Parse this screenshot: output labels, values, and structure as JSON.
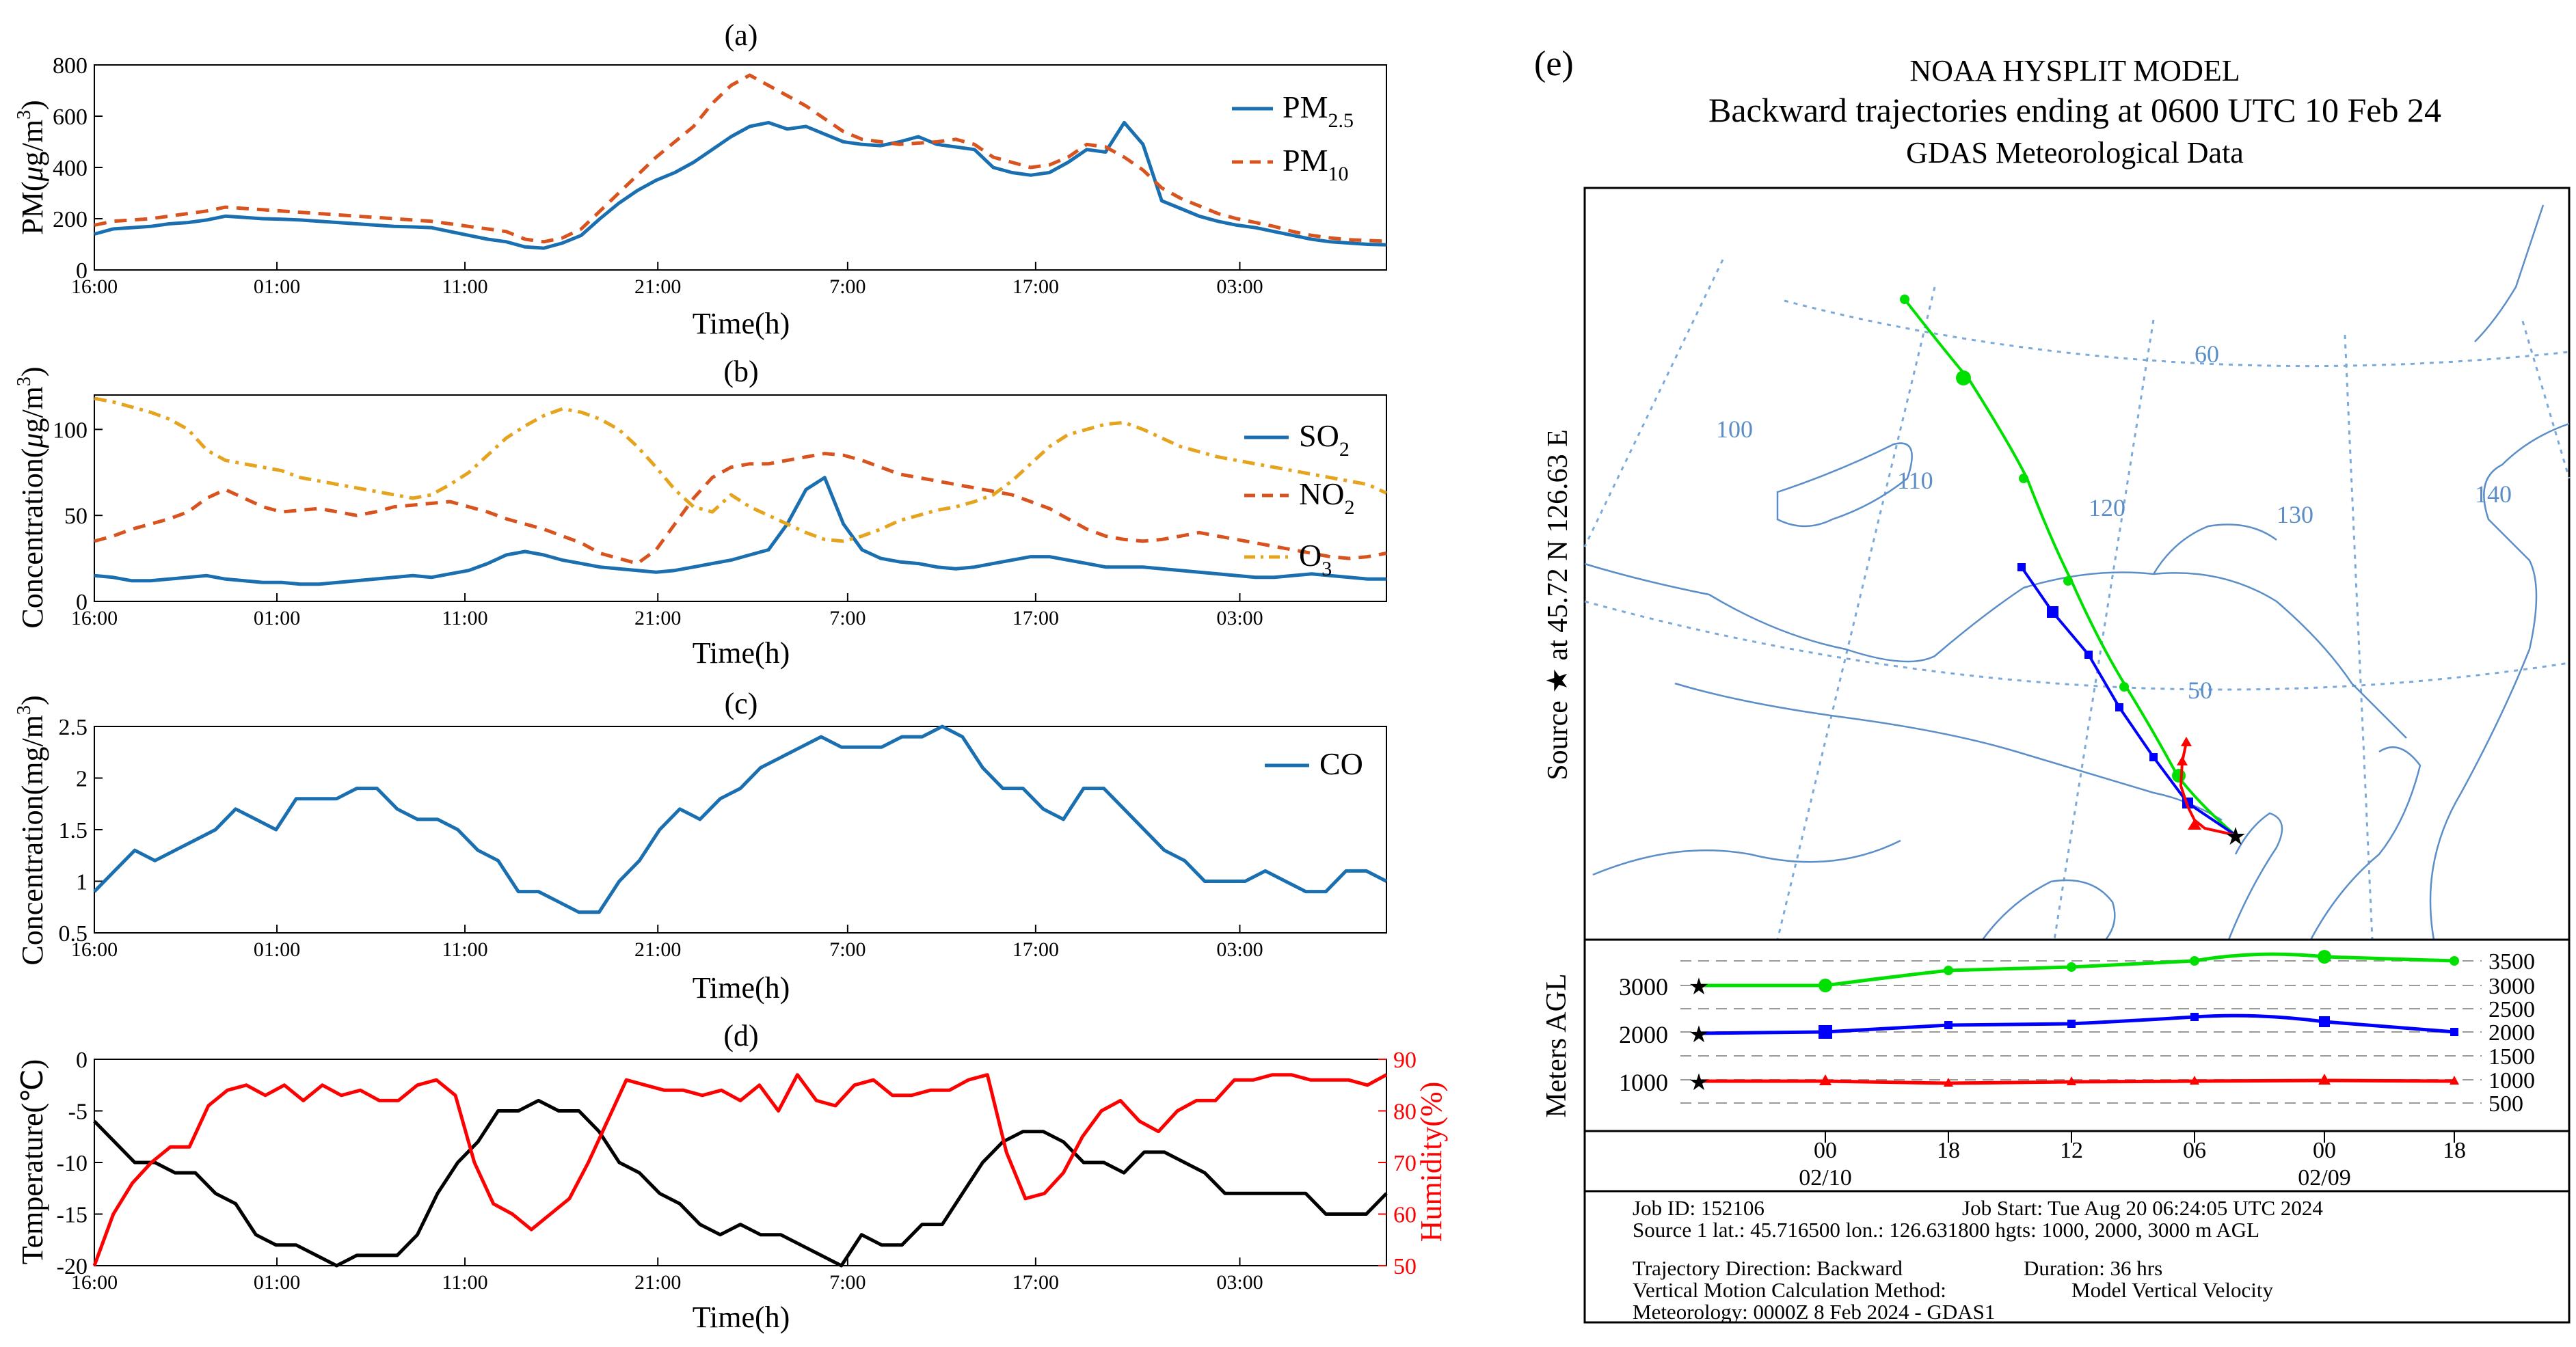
{
  "chart_data": [
    {
      "id": "a",
      "type": "line",
      "panel_label": "(a)",
      "xlabel": "Time(h)",
      "ylabel": "PM(μg/m³)",
      "ylabel_parts": [
        "PM(",
        "μ",
        "g/m",
        "3",
        ")"
      ],
      "ylim": [
        0,
        800
      ],
      "yticks": [
        "0",
        "200",
        "400",
        "600",
        "800"
      ],
      "xticks": [
        "16:00",
        "01:00",
        "11:00",
        "21:00",
        "7:00",
        "17:00",
        "03:00"
      ],
      "legend_position": "top-right",
      "series": [
        {
          "name": "PM2.5",
          "label_main": "PM",
          "label_sub": "2.5",
          "color": "#1a6fb0",
          "dash": "solid",
          "values": [
            140,
            160,
            165,
            170,
            180,
            185,
            195,
            210,
            205,
            200,
            198,
            195,
            190,
            185,
            180,
            175,
            170,
            168,
            165,
            150,
            135,
            120,
            110,
            90,
            85,
            105,
            135,
            200,
            260,
            310,
            350,
            380,
            420,
            470,
            520,
            560,
            575,
            550,
            560,
            530,
            500,
            490,
            485,
            500,
            520,
            490,
            480,
            470,
            400,
            380,
            370,
            380,
            420,
            470,
            460,
            575,
            490,
            270,
            240,
            210,
            190,
            175,
            165,
            150,
            135,
            120,
            110,
            105,
            100,
            98
          ]
        },
        {
          "name": "PM10",
          "label_main": "PM",
          "label_sub": "10",
          "color": "#d9531e",
          "dash": "dash",
          "values": [
            175,
            190,
            195,
            200,
            210,
            220,
            230,
            245,
            240,
            235,
            230,
            225,
            220,
            215,
            210,
            205,
            200,
            195,
            190,
            180,
            170,
            160,
            150,
            120,
            110,
            125,
            160,
            230,
            300,
            370,
            440,
            500,
            560,
            650,
            720,
            760,
            720,
            680,
            640,
            590,
            540,
            510,
            500,
            490,
            495,
            500,
            510,
            490,
            440,
            420,
            400,
            410,
            440,
            490,
            480,
            440,
            390,
            320,
            280,
            250,
            220,
            200,
            185,
            170,
            150,
            135,
            125,
            118,
            115,
            112
          ]
        }
      ]
    },
    {
      "id": "b",
      "type": "line",
      "panel_label": "(b)",
      "xlabel": "Time(h)",
      "ylabel": "Concentration(μg/m³)",
      "ylabel_parts": [
        "Concentration(",
        "μ",
        "g/m",
        "3",
        ")"
      ],
      "ylim": [
        0,
        120
      ],
      "yticks": [
        "0",
        "50",
        "100"
      ],
      "xticks": [
        "16:00",
        "01:00",
        "11:00",
        "21:00",
        "7:00",
        "17:00",
        "03:00"
      ],
      "legend_position": "top-right",
      "series": [
        {
          "name": "SO2",
          "label_main": "SO",
          "label_sub": "2",
          "color": "#1a6fb0",
          "dash": "solid",
          "values": [
            15,
            14,
            12,
            12,
            13,
            14,
            15,
            13,
            12,
            11,
            11,
            10,
            10,
            11,
            12,
            13,
            14,
            15,
            14,
            16,
            18,
            22,
            27,
            29,
            27,
            24,
            22,
            20,
            19,
            18,
            17,
            18,
            20,
            22,
            24,
            27,
            30,
            45,
            65,
            72,
            45,
            30,
            25,
            23,
            22,
            20,
            19,
            20,
            22,
            24,
            26,
            26,
            24,
            22,
            20,
            20,
            20,
            19,
            18,
            17,
            16,
            15,
            14,
            14,
            15,
            16,
            15,
            14,
            13,
            13
          ]
        },
        {
          "name": "NO2",
          "label_main": "NO",
          "label_sub": "2",
          "color": "#d9531e",
          "dash": "dash",
          "values": [
            35,
            38,
            42,
            45,
            48,
            52,
            60,
            65,
            60,
            55,
            52,
            53,
            54,
            52,
            50,
            52,
            55,
            56,
            57,
            58,
            55,
            52,
            48,
            45,
            42,
            38,
            34,
            28,
            25,
            22,
            30,
            45,
            60,
            72,
            78,
            80,
            80,
            82,
            84,
            86,
            85,
            82,
            78,
            74,
            72,
            70,
            68,
            66,
            64,
            62,
            58,
            54,
            48,
            42,
            38,
            36,
            35,
            36,
            38,
            40,
            38,
            36,
            34,
            32,
            30,
            28,
            26,
            25,
            26,
            28
          ]
        },
        {
          "name": "O3",
          "label_main": "O",
          "label_sub": "3",
          "color": "#e6a31e",
          "dash": "dashdot",
          "values": [
            118,
            116,
            113,
            110,
            106,
            100,
            88,
            82,
            80,
            78,
            76,
            72,
            70,
            68,
            66,
            64,
            62,
            60,
            62,
            68,
            75,
            85,
            95,
            102,
            108,
            112,
            110,
            106,
            100,
            90,
            78,
            65,
            55,
            52,
            62,
            55,
            50,
            45,
            40,
            36,
            35,
            38,
            42,
            47,
            50,
            53,
            55,
            58,
            62,
            70,
            80,
            90,
            97,
            100,
            103,
            104,
            100,
            95,
            90,
            87,
            84,
            82,
            80,
            78,
            76,
            74,
            72,
            70,
            68,
            63
          ]
        }
      ]
    },
    {
      "id": "c",
      "type": "line",
      "panel_label": "(c)",
      "xlabel": "Time(h)",
      "ylabel": "Concentration(mg/m³)",
      "ylabel_parts": [
        "Concentration(mg/m",
        "3",
        ")"
      ],
      "ylim": [
        0.5,
        2.5
      ],
      "yticks": [
        "0.5",
        "1",
        "1.5",
        "2",
        "2.5"
      ],
      "xticks": [
        "16:00",
        "01:00",
        "11:00",
        "21:00",
        "7:00",
        "17:00",
        "03:00"
      ],
      "legend_position": "top-right",
      "series": [
        {
          "name": "CO",
          "label_main": "CO",
          "label_sub": "",
          "color": "#1a6fb0",
          "dash": "solid",
          "values": [
            0.9,
            1.1,
            1.3,
            1.2,
            1.3,
            1.4,
            1.5,
            1.7,
            1.6,
            1.5,
            1.8,
            1.8,
            1.8,
            1.9,
            1.9,
            1.7,
            1.6,
            1.6,
            1.5,
            1.3,
            1.2,
            0.9,
            0.9,
            0.8,
            0.7,
            0.7,
            1.0,
            1.2,
            1.5,
            1.7,
            1.6,
            1.8,
            1.9,
            2.1,
            2.2,
            2.3,
            2.4,
            2.3,
            2.3,
            2.3,
            2.4,
            2.4,
            2.5,
            2.4,
            2.1,
            1.9,
            1.9,
            1.7,
            1.6,
            1.9,
            1.9,
            1.7,
            1.5,
            1.3,
            1.2,
            1.0,
            1.0,
            1.0,
            1.1,
            1.0,
            0.9,
            0.9,
            1.1,
            1.1,
            1.0
          ]
        }
      ]
    },
    {
      "id": "d",
      "type": "line",
      "panel_label": "(d)",
      "xlabel": "Time(h)",
      "ylabel": "Temperature(℃)",
      "ylabel_right": "Humidity(%)",
      "ylim": [
        -20,
        0
      ],
      "ylim_right": [
        50,
        90
      ],
      "yticks": [
        "-20",
        "-15",
        "-10",
        "-5",
        "0"
      ],
      "yticks_right": [
        "50",
        "60",
        "70",
        "80",
        "90"
      ],
      "xticks": [
        "16:00",
        "01:00",
        "11:00",
        "21:00",
        "7:00",
        "17:00",
        "03:00"
      ],
      "series": [
        {
          "name": "Temperature",
          "color": "#000000",
          "axis": "left",
          "values": [
            -6,
            -8,
            -10,
            -10,
            -11,
            -11,
            -13,
            -14,
            -17,
            -18,
            -18,
            -19,
            -20,
            -19,
            -19,
            -19,
            -17,
            -13,
            -10,
            -8,
            -5,
            -5,
            -4,
            -5,
            -5,
            -7,
            -10,
            -11,
            -13,
            -14,
            -16,
            -17,
            -16,
            -17,
            -17,
            -18,
            -19,
            -20,
            -17,
            -18,
            -18,
            -16,
            -16,
            -13,
            -10,
            -8,
            -7,
            -7,
            -8,
            -10,
            -10,
            -11,
            -9,
            -9,
            -10,
            -11,
            -13,
            -13,
            -13,
            -13,
            -13,
            -15,
            -15,
            -15,
            -13
          ]
        },
        {
          "name": "Humidity",
          "color": "#ff0000",
          "axis": "right",
          "values": [
            50,
            60,
            66,
            70,
            73,
            73,
            81,
            84,
            85,
            83,
            85,
            82,
            85,
            83,
            84,
            82,
            82,
            85,
            86,
            83,
            70,
            62,
            60,
            57,
            60,
            63,
            70,
            78,
            86,
            85,
            84,
            84,
            83,
            84,
            82,
            85,
            80,
            87,
            82,
            81,
            85,
            86,
            83,
            83,
            84,
            84,
            86,
            87,
            72,
            63,
            64,
            68,
            75,
            80,
            82,
            78,
            76,
            80,
            82,
            82,
            86,
            86,
            87,
            87,
            86,
            86,
            86,
            85,
            87
          ]
        }
      ]
    }
  ],
  "panel_e": {
    "label": "(e)",
    "title_lines": [
      "NOAA HYSPLIT MODEL",
      "Backward trajectories ending at 0600 UTC 10 Feb 24",
      "GDAS Meteorological Data"
    ],
    "source_label": "Source ★ at 45.72 N 126.63 E",
    "map_grid_labels": [
      "60",
      "100",
      "110",
      "120",
      "130",
      "140",
      "50"
    ],
    "trajectory_colors": {
      "green": "#00e000",
      "blue": "#0000ff",
      "red": "#ff0000"
    },
    "height_panel": {
      "ylabel": "Meters AGL",
      "left_ticks": [
        "3000",
        "2000",
        "1000"
      ],
      "right_ticks": [
        "3500",
        "3000",
        "2500",
        "2000",
        "1500",
        "1000",
        "500"
      ],
      "time_ticks": [
        "00",
        "18",
        "12",
        "06",
        "00",
        "18"
      ],
      "date_labels": [
        "02/10",
        "02/09"
      ]
    },
    "info_lines": [
      [
        "Job ID: 152106",
        "Job Start: Tue Aug 20 06:24:05 UTC 2024"
      ],
      [
        "Source 1 lat.: 45.716500  lon.: 126.631800  hgts: 1000, 2000, 3000 m AGL",
        ""
      ],
      [
        "Trajectory Direction: Backward",
        "Duration: 36 hrs"
      ],
      [
        "Vertical Motion Calculation Method:",
        "Model Vertical Velocity"
      ],
      [
        "Meteorology: 0000Z 8 Feb 2024 - GDAS1",
        ""
      ]
    ]
  }
}
